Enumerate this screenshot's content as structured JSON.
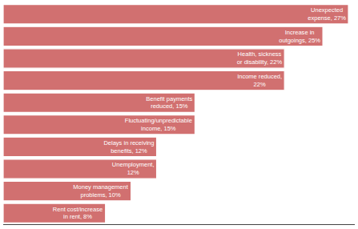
{
  "chart_data": {
    "type": "bar",
    "orientation": "horizontal",
    "categories": [
      "Rent cost/increase\nin rent, 8%",
      "Money management\nproblems, 10%",
      "Unemployment,\n12%",
      "Delays in receiving\nbenefits, 12%",
      "Fluctuating/unpredictable\nincome, 15%",
      "Benefit payments\nreduced, 15%",
      "Income reduced,\n22%",
      "Health, sickness\nor disability, 22%",
      "Increase in\noutgoings, 25%",
      "Unexpected\nexpense, 27%"
    ],
    "values": [
      8,
      10,
      12,
      12,
      15,
      15,
      22,
      22,
      25,
      27
    ],
    "color": "#d17070",
    "xlim": [
      0,
      27.5
    ],
    "tick_labels": false,
    "grid": false
  }
}
